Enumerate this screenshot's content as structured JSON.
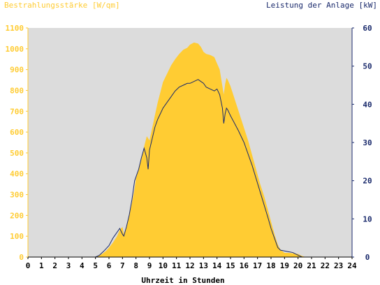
{
  "chart_data": {
    "type": "area",
    "title_left": "Bestrahlungsstärke [W/qm]",
    "title_right": "Leistung der Anlage [kW]",
    "xlabel": "Uhrzeit in Stunden",
    "xlim": [
      0,
      24
    ],
    "x_ticks": [
      "0",
      "1",
      "2",
      "3",
      "4",
      "5",
      "6",
      "7",
      "8",
      "9",
      "10",
      "11",
      "12",
      "13",
      "14",
      "15",
      "16",
      "17",
      "18",
      "19",
      "20",
      "21",
      "22",
      "23",
      "24"
    ],
    "ylim_left": [
      0,
      1100
    ],
    "y_ticks_left": [
      "0",
      "100",
      "200",
      "300",
      "400",
      "500",
      "600",
      "700",
      "800",
      "900",
      "1000",
      "1100"
    ],
    "ylim_right": [
      0,
      60
    ],
    "y_ticks_right": [
      "0",
      "10",
      "20",
      "30",
      "40",
      "50",
      "60"
    ],
    "grid": false,
    "series": [
      {
        "name": "Bestrahlungsstärke [W/qm]",
        "axis": "left",
        "color": "#ffcc33",
        "style": "area",
        "x": [
          0,
          5,
          5.2,
          5.5,
          5.8,
          6.0,
          6.3,
          6.6,
          6.8,
          7.0,
          7.1,
          7.3,
          7.5,
          7.7,
          7.9,
          8.0,
          8.2,
          8.4,
          8.6,
          8.8,
          9.0,
          9.2,
          9.4,
          9.6,
          9.8,
          10.0,
          10.3,
          10.6,
          10.9,
          11.2,
          11.5,
          11.8,
          12.0,
          12.3,
          12.6,
          12.8,
          13.0,
          13.2,
          13.5,
          13.8,
          14.0,
          14.2,
          14.4,
          14.5,
          14.6,
          14.7,
          14.8,
          15.0,
          15.2,
          15.4,
          15.6,
          15.8,
          16.0,
          16.3,
          16.6,
          16.9,
          17.2,
          17.5,
          17.8,
          18.0,
          18.3,
          18.5,
          18.7,
          18.9,
          19.0,
          19.3,
          19.6,
          20.0,
          20.2,
          20.4,
          20.6,
          24
        ],
        "values": [
          0,
          0,
          5,
          15,
          30,
          45,
          70,
          100,
          130,
          145,
          110,
          150,
          200,
          260,
          330,
          380,
          420,
          470,
          530,
          580,
          560,
          620,
          680,
          740,
          790,
          840,
          880,
          920,
          950,
          975,
          995,
          1005,
          1020,
          1030,
          1025,
          1010,
          985,
          975,
          970,
          960,
          930,
          900,
          820,
          780,
          830,
          860,
          850,
          820,
          780,
          740,
          700,
          660,
          620,
          560,
          490,
          420,
          350,
          290,
          220,
          170,
          100,
          60,
          35,
          25,
          20,
          20,
          18,
          15,
          8,
          3,
          0,
          0
        ]
      },
      {
        "name": "Leistung der Anlage [kW]",
        "axis": "right",
        "color": "#1a2a6c",
        "style": "line",
        "x": [
          0,
          5,
          5.3,
          5.6,
          6.0,
          6.3,
          6.6,
          6.8,
          7.0,
          7.1,
          7.3,
          7.5,
          7.7,
          7.9,
          8.0,
          8.2,
          8.4,
          8.6,
          8.8,
          8.9,
          9.0,
          9.2,
          9.4,
          9.6,
          9.8,
          10.0,
          10.3,
          10.6,
          10.9,
          11.2,
          11.5,
          11.8,
          12.0,
          12.3,
          12.6,
          12.8,
          13.0,
          13.2,
          13.5,
          13.8,
          14.0,
          14.2,
          14.4,
          14.5,
          14.6,
          14.7,
          14.8,
          15.0,
          15.3,
          15.6,
          16.0,
          16.3,
          16.6,
          16.9,
          17.2,
          17.5,
          17.8,
          18.0,
          18.3,
          18.5,
          18.7,
          19.0,
          19.3,
          19.6,
          20.0,
          20.3,
          24
        ],
        "values": [
          0,
          0,
          0.5,
          1.5,
          3,
          5,
          6.5,
          7.5,
          6,
          5.5,
          8,
          11,
          15,
          20,
          21,
          23,
          26,
          28.5,
          26,
          23,
          28,
          31,
          34,
          36,
          37.5,
          39,
          40.5,
          42,
          43.5,
          44.5,
          45,
          45.5,
          45.5,
          46,
          46.5,
          46,
          45.5,
          44.5,
          44,
          43.5,
          44,
          42.5,
          39,
          35,
          37.5,
          39,
          38.5,
          37,
          35,
          33,
          30,
          27,
          24,
          20.5,
          17,
          13.5,
          10,
          7.5,
          4.5,
          2.5,
          1.8,
          1.6,
          1.4,
          1.2,
          0.5,
          0,
          0
        ]
      }
    ]
  },
  "colors": {
    "plot_background": "#dcdcdc",
    "axis_left": "#ffcc33",
    "axis_right": "#1a2a6c",
    "axis_x": "#000000"
  }
}
